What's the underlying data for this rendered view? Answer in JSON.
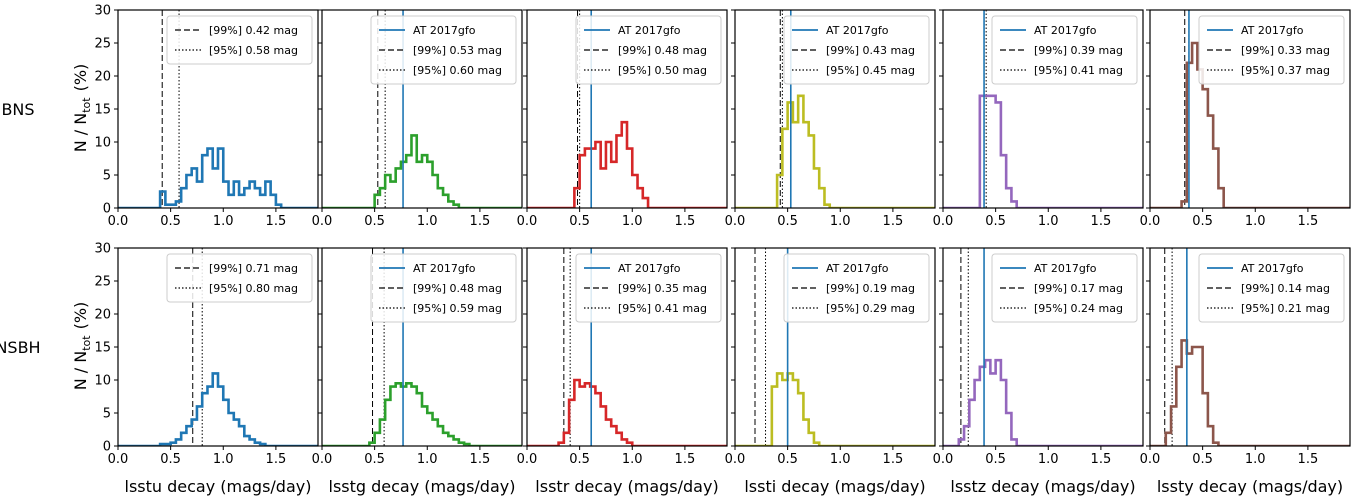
{
  "figure": {
    "row_labels": [
      "BNS",
      "NSBH"
    ],
    "row_label_color": "#9467bd",
    "y_axis_title": "N / N",
    "y_axis_sub": "tot",
    "y_axis_unit": "(%)",
    "x_axis_titles": [
      "lsstu decay (mags/day)",
      "lsstg decay (mags/day)",
      "lsstr decay (mags/day)",
      "lssti decay (mags/day)",
      "lsstz decay (mags/day)",
      "lssty decay (mags/day)"
    ],
    "series_colors": [
      "#1f77b4",
      "#2ca02c",
      "#d62728",
      "#bcbd22",
      "#9467bd",
      "#8c564b"
    ],
    "event_line_color": "#1f77b4"
  },
  "chart_data": [
    {
      "type": "step-histogram",
      "row": "BNS",
      "filter": "lsstu",
      "xlim": [
        0,
        1.9
      ],
      "ylim": [
        0,
        30
      ],
      "xticks": [
        "0.0",
        "0.5",
        "1.0",
        "1.5"
      ],
      "yticks": [
        "0",
        "5",
        "10",
        "15",
        "20",
        "25",
        "30"
      ],
      "bin_start": 0.4,
      "bin_width": 0.05,
      "values": [
        2.5,
        0.5,
        0.5,
        1,
        3,
        5,
        6,
        4,
        8,
        9,
        6,
        9,
        4,
        2,
        4,
        2,
        3,
        4,
        3,
        2,
        4,
        2,
        0.5
      ],
      "legend": [
        {
          "style": "dashed",
          "label": "[99%] 0.42 mag",
          "x": 0.42
        },
        {
          "style": "dotted",
          "label": "[95%] 0.58 mag",
          "x": 0.58
        }
      ]
    },
    {
      "type": "step-histogram",
      "row": "BNS",
      "filter": "lsstg",
      "xlim": [
        0,
        1.9
      ],
      "ylim": [
        0,
        30
      ],
      "xticks": [
        "0.0",
        "0.5",
        "1.0",
        "1.5"
      ],
      "yticks": [],
      "bin_start": 0.5,
      "bin_width": 0.05,
      "values": [
        2,
        3,
        5,
        4,
        6,
        7,
        8,
        11,
        7,
        8,
        7,
        5,
        3,
        2,
        1,
        0.5
      ],
      "event": {
        "label": "AT 2017gfo",
        "x": 0.77
      },
      "legend": [
        {
          "style": "dashed",
          "label": "[99%] 0.53 mag",
          "x": 0.53
        },
        {
          "style": "dotted",
          "label": "[95%] 0.60 mag",
          "x": 0.6
        }
      ]
    },
    {
      "type": "step-histogram",
      "row": "BNS",
      "filter": "lsstr",
      "xlim": [
        0,
        1.9
      ],
      "ylim": [
        0,
        30
      ],
      "xticks": [
        "0.0",
        "0.5",
        "1.0",
        "1.5"
      ],
      "yticks": [],
      "bin_start": 0.45,
      "bin_width": 0.05,
      "values": [
        3,
        8,
        9,
        9,
        10,
        6,
        10,
        7,
        11,
        13,
        9,
        5,
        3,
        1.5
      ],
      "event": {
        "label": "AT 2017gfo",
        "x": 0.61
      },
      "legend": [
        {
          "style": "dashed",
          "label": "[99%] 0.48 mag",
          "x": 0.48
        },
        {
          "style": "dotted",
          "label": "[95%] 0.50 mag",
          "x": 0.5
        }
      ]
    },
    {
      "type": "step-histogram",
      "row": "BNS",
      "filter": "lssti",
      "xlim": [
        0,
        1.9
      ],
      "ylim": [
        0,
        30
      ],
      "xticks": [
        "0.0",
        "0.5",
        "1.0",
        "1.5"
      ],
      "yticks": [],
      "bin_start": 0.4,
      "bin_width": 0.05,
      "values": [
        5,
        12,
        16,
        13,
        17,
        13,
        11,
        6,
        3,
        0.5
      ],
      "event": {
        "label": "AT 2017gfo",
        "x": 0.53
      },
      "legend": [
        {
          "style": "dashed",
          "label": "[99%] 0.43 mag",
          "x": 0.43
        },
        {
          "style": "dotted",
          "label": "[95%] 0.45 mag",
          "x": 0.45
        }
      ]
    },
    {
      "type": "step-histogram",
      "row": "BNS",
      "filter": "lsstz",
      "xlim": [
        0,
        1.9
      ],
      "ylim": [
        0,
        30
      ],
      "xticks": [
        "0.0",
        "0.5",
        "1.0",
        "1.5"
      ],
      "yticks": [],
      "bin_start": 0.35,
      "bin_width": 0.05,
      "values": [
        17,
        17,
        17,
        16,
        8,
        3,
        1
      ],
      "event": {
        "label": "AT 2017gfo",
        "x": 0.39
      },
      "legend": [
        {
          "style": "dashed",
          "label": "[99%] 0.39 mag",
          "x": 0.39
        },
        {
          "style": "dotted",
          "label": "[95%] 0.41 mag",
          "x": 0.41
        }
      ]
    },
    {
      "type": "step-histogram",
      "row": "BNS",
      "filter": "lssty",
      "xlim": [
        0,
        1.9
      ],
      "ylim": [
        0,
        30
      ],
      "xticks": [
        "0.0",
        "0.5",
        "1.0",
        "1.5"
      ],
      "yticks": [],
      "bin_start": 0.3,
      "bin_width": 0.05,
      "values": [
        1,
        22,
        25,
        21,
        18,
        14,
        9,
        3
      ],
      "event": {
        "label": "AT 2017gfo",
        "x": 0.37
      },
      "legend": [
        {
          "style": "dashed",
          "label": "[99%] 0.33 mag",
          "x": 0.33
        },
        {
          "style": "dotted",
          "label": "[95%] 0.37 mag",
          "x": 0.37
        }
      ]
    },
    {
      "type": "step-histogram",
      "row": "NSBH",
      "filter": "lsstu",
      "xlim": [
        0,
        1.9
      ],
      "ylim": [
        0,
        30
      ],
      "xticks": [
        "0.0",
        "0.5",
        "1.0",
        "1.5"
      ],
      "yticks": [
        "0",
        "5",
        "10",
        "15",
        "20",
        "25",
        "30"
      ],
      "bin_start": 0.4,
      "bin_width": 0.05,
      "values": [
        0.3,
        0.3,
        0.5,
        1,
        2,
        3,
        4,
        6,
        8,
        9,
        11,
        9,
        7,
        5,
        4,
        3,
        1.5,
        1,
        0.5,
        0.3
      ],
      "legend": [
        {
          "style": "dashed",
          "label": "[99%] 0.71 mag",
          "x": 0.71
        },
        {
          "style": "dotted",
          "label": "[95%] 0.80 mag",
          "x": 0.8
        }
      ]
    },
    {
      "type": "step-histogram",
      "row": "NSBH",
      "filter": "lsstg",
      "xlim": [
        0,
        1.9
      ],
      "ylim": [
        0,
        30
      ],
      "xticks": [
        "0.0",
        "0.5",
        "1.0",
        "1.5"
      ],
      "yticks": [],
      "bin_start": 0.45,
      "bin_width": 0.05,
      "values": [
        0.5,
        2,
        4,
        7,
        9,
        9.5,
        9,
        9.5,
        9,
        8,
        6,
        5,
        4,
        3,
        2,
        1.5,
        1,
        0.5,
        0.3
      ],
      "event": {
        "label": "AT 2017gfo",
        "x": 0.77
      },
      "legend": [
        {
          "style": "dashed",
          "label": "[99%] 0.48 mag",
          "x": 0.48
        },
        {
          "style": "dotted",
          "label": "[95%] 0.59 mag",
          "x": 0.59
        }
      ]
    },
    {
      "type": "step-histogram",
      "row": "NSBH",
      "filter": "lsstr",
      "xlim": [
        0,
        1.9
      ],
      "ylim": [
        0,
        30
      ],
      "xticks": [
        "0.0",
        "0.5",
        "1.0",
        "1.5"
      ],
      "yticks": [],
      "bin_start": 0.3,
      "bin_width": 0.05,
      "values": [
        0.5,
        2,
        7,
        10,
        9,
        9.5,
        9,
        8,
        6,
        4,
        3,
        2,
        1,
        0.5
      ],
      "event": {
        "label": "AT 2017gfo",
        "x": 0.61
      },
      "legend": [
        {
          "style": "dashed",
          "label": "[99%] 0.35 mag",
          "x": 0.35
        },
        {
          "style": "dotted",
          "label": "[95%] 0.41 mag",
          "x": 0.41
        }
      ]
    },
    {
      "type": "step-histogram",
      "row": "NSBH",
      "filter": "lssti",
      "xlim": [
        0,
        1.9
      ],
      "ylim": [
        0,
        30
      ],
      "xticks": [
        "0.0",
        "0.5",
        "1.0",
        "1.5"
      ],
      "yticks": [],
      "bin_start": 0.35,
      "bin_width": 0.05,
      "values": [
        9,
        11,
        10,
        11,
        10,
        8,
        4,
        2,
        0.5
      ],
      "event": {
        "label": "AT 2017gfo",
        "x": 0.5
      },
      "legend": [
        {
          "style": "dashed",
          "label": "[99%] 0.19 mag",
          "x": 0.19
        },
        {
          "style": "dotted",
          "label": "[95%] 0.29 mag",
          "x": 0.29
        }
      ]
    },
    {
      "type": "step-histogram",
      "row": "NSBH",
      "filter": "lsstz",
      "xlim": [
        0,
        1.9
      ],
      "ylim": [
        0,
        30
      ],
      "xticks": [
        "0.0",
        "0.5",
        "1.0",
        "1.5"
      ],
      "yticks": [],
      "bin_start": 0.15,
      "bin_width": 0.05,
      "values": [
        1,
        3,
        7,
        10,
        12,
        13,
        11,
        13,
        10,
        5,
        1
      ],
      "event": {
        "label": "AT 2017gfo",
        "x": 0.39
      },
      "legend": [
        {
          "style": "dashed",
          "label": "[99%] 0.17 mag",
          "x": 0.17
        },
        {
          "style": "dotted",
          "label": "[95%] 0.24 mag",
          "x": 0.24
        }
      ]
    },
    {
      "type": "step-histogram",
      "row": "NSBH",
      "filter": "lssty",
      "xlim": [
        0,
        1.9
      ],
      "ylim": [
        0,
        30
      ],
      "xticks": [
        "0.0",
        "0.5",
        "1.0",
        "1.5"
      ],
      "yticks": [],
      "bin_start": 0.15,
      "bin_width": 0.05,
      "values": [
        2,
        6,
        12,
        16,
        14,
        15,
        15,
        8,
        3,
        0.5
      ],
      "event": {
        "label": "AT 2017gfo",
        "x": 0.35
      },
      "legend": [
        {
          "style": "dashed",
          "label": "[99%] 0.14 mag",
          "x": 0.14
        },
        {
          "style": "dotted",
          "label": "[95%] 0.21 mag",
          "x": 0.21
        }
      ]
    }
  ]
}
